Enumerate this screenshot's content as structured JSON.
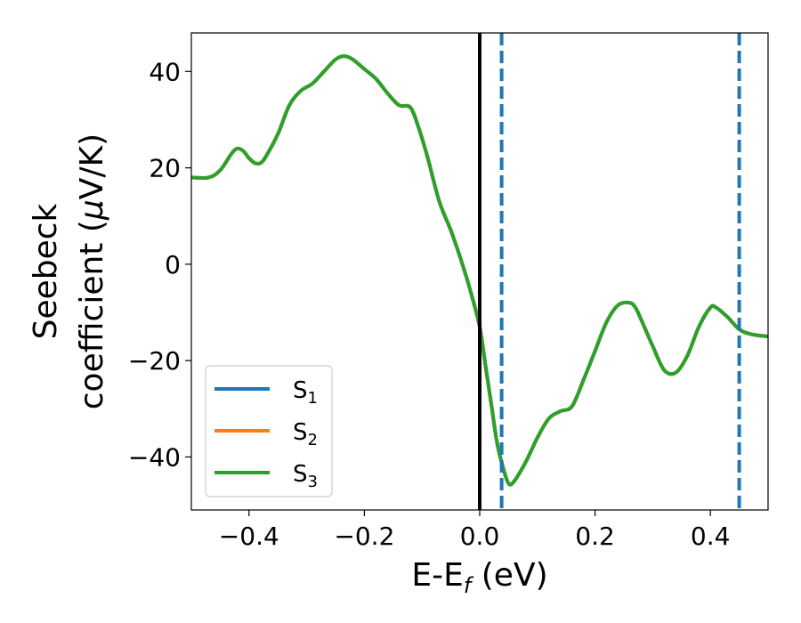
{
  "chart_data": {
    "type": "line",
    "xlabel": "E-E",
    "xlabel_subscript": "f",
    "xlabel_unit": " (eV)",
    "ylabel_line1": "Seebeck",
    "ylabel_line2": "coefficient  (",
    "ylabel_mu": "μ",
    "ylabel_unit": "V/K)",
    "xlim": [
      -0.5,
      0.5
    ],
    "ylim": [
      -51,
      48
    ],
    "xticks": [
      -0.4,
      -0.2,
      0.0,
      0.2,
      0.4
    ],
    "xtick_labels": [
      "−0.4",
      "−0.2",
      "0.0",
      "0.2",
      "0.4"
    ],
    "yticks": [
      -40,
      -20,
      0,
      20,
      40
    ],
    "ytick_labels": [
      "−40",
      "−20",
      "0",
      "20",
      "40"
    ],
    "grid": false,
    "legend_position": "lower-left",
    "fermi_line": {
      "x": 0.0,
      "color": "#000000",
      "style": "solid"
    },
    "reference_lines": [
      {
        "x": 0.038,
        "color": "#1f77b4",
        "style": "dashed"
      },
      {
        "x": 0.45,
        "color": "#1f77b4",
        "style": "dashed"
      }
    ],
    "x": [
      -0.5,
      -0.47,
      -0.45,
      -0.43,
      -0.42,
      -0.41,
      -0.4,
      -0.39,
      -0.38,
      -0.37,
      -0.35,
      -0.33,
      -0.31,
      -0.29,
      -0.27,
      -0.25,
      -0.235,
      -0.22,
      -0.2,
      -0.18,
      -0.16,
      -0.14,
      -0.12,
      -0.105,
      -0.09,
      -0.07,
      -0.05,
      -0.03,
      -0.015,
      0.0,
      0.01,
      0.02,
      0.03,
      0.04,
      0.05,
      0.06,
      0.08,
      0.1,
      0.12,
      0.14,
      0.16,
      0.18,
      0.2,
      0.22,
      0.24,
      0.26,
      0.27,
      0.28,
      0.3,
      0.32,
      0.34,
      0.36,
      0.38,
      0.4,
      0.41,
      0.43,
      0.45,
      0.47,
      0.5
    ],
    "series": [
      {
        "name": "S",
        "name_sub": "1",
        "color": "#1f77b4",
        "values": [
          18,
          18,
          19.5,
          23,
          24,
          23.5,
          22,
          21,
          21,
          22.5,
          27,
          33,
          36,
          37.5,
          40,
          42.5,
          43.2,
          42.5,
          40.5,
          38.5,
          35.5,
          33,
          32.5,
          28,
          22,
          13,
          7,
          0,
          -6,
          -13,
          -21,
          -29,
          -37,
          -42,
          -45.5,
          -45,
          -41,
          -36,
          -32,
          -30.5,
          -29.5,
          -24,
          -18,
          -12,
          -8.5,
          -8,
          -9,
          -11.5,
          -17,
          -22,
          -22.5,
          -19,
          -13,
          -9,
          -9,
          -11,
          -13.5,
          -14.5,
          -15
        ]
      },
      {
        "name": "S",
        "name_sub": "2",
        "color": "#ff7f0e",
        "values": [
          18,
          18,
          19.5,
          23,
          24,
          23.5,
          22,
          21,
          21,
          22.5,
          27,
          33,
          36,
          37.5,
          40,
          42.5,
          43.2,
          42.5,
          40.5,
          38.5,
          35.5,
          33,
          32.5,
          28,
          22,
          13,
          7,
          0,
          -6,
          -13,
          -21,
          -29,
          -37,
          -42,
          -45.5,
          -45,
          -41,
          -36,
          -32,
          -30.5,
          -29.5,
          -24,
          -18,
          -12,
          -8.5,
          -8,
          -9,
          -11.5,
          -17,
          -22,
          -22.5,
          -19,
          -13,
          -9,
          -9,
          -11,
          -13.5,
          -14.5,
          -15
        ]
      },
      {
        "name": "S",
        "name_sub": "3",
        "color": "#2ca02c",
        "values": [
          18,
          18,
          19.5,
          23,
          24,
          23.5,
          22,
          21,
          21,
          22.5,
          27,
          33,
          36,
          37.5,
          40,
          42.5,
          43.2,
          42.5,
          40.5,
          38.5,
          35.5,
          33,
          32.5,
          28,
          22,
          13,
          7,
          0,
          -6,
          -13,
          -21,
          -29,
          -37,
          -42,
          -45.5,
          -45,
          -41,
          -36,
          -32,
          -30.5,
          -29.5,
          -24,
          -18,
          -12,
          -8.5,
          -8,
          -9,
          -11.5,
          -17,
          -22,
          -22.5,
          -19,
          -13,
          -9,
          -9,
          -11,
          -13.5,
          -14.5,
          -15
        ]
      }
    ]
  }
}
